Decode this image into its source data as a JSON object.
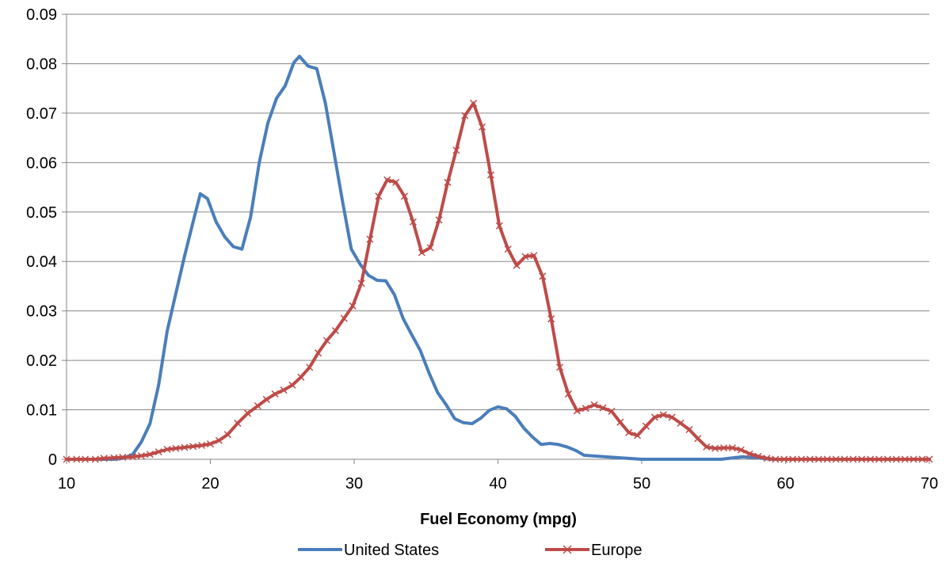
{
  "chart_data": {
    "type": "line",
    "title": "",
    "xlabel": "Fuel Economy (mpg)",
    "ylabel": "",
    "xlim": [
      10,
      70
    ],
    "ylim": [
      0,
      0.09
    ],
    "x_ticks": [
      10,
      20,
      30,
      40,
      50,
      60,
      70
    ],
    "y_ticks": [
      0,
      0.01,
      0.02,
      0.03,
      0.04,
      0.05,
      0.06,
      0.07,
      0.08,
      0.09
    ],
    "x_tick_labels": [
      "10",
      "20",
      "30",
      "40",
      "50",
      "60",
      "70"
    ],
    "y_tick_labels": [
      "0",
      "0.01",
      "0.02",
      "0.03",
      "0.04",
      "0.05",
      "0.06",
      "0.07",
      "0.08",
      "0.09"
    ],
    "grid": "horizontal",
    "legend_position": "bottom",
    "series": [
      {
        "name": "United States",
        "color": "#4a7ebb",
        "marker": "none",
        "x": [
          10,
          10.7,
          11.3,
          12,
          12.6,
          13.3,
          13.9,
          14.6,
          15.2,
          15.8,
          16.4,
          17,
          17.6,
          18.2,
          18.8,
          19.3,
          19.8,
          20.4,
          21,
          21.6,
          22.2,
          22.8,
          23.4,
          24,
          24.6,
          25.2,
          25.8,
          26.2,
          26.8,
          27.4,
          28,
          28.6,
          29.2,
          29.8,
          30.4,
          31,
          31.6,
          32.2,
          32.8,
          33.4,
          34,
          34.6,
          35.2,
          35.8,
          36.4,
          37,
          37.6,
          38.2,
          38.8,
          39.4,
          40,
          40.6,
          41.2,
          41.8,
          42.4,
          43,
          43.6,
          44.2,
          44.8,
          45.4,
          46,
          50,
          55.5,
          57,
          58,
          59,
          70
        ],
        "y": [
          0,
          0,
          0,
          0,
          0,
          0,
          0.0002,
          0.001,
          0.0035,
          0.0072,
          0.015,
          0.026,
          0.0335,
          0.041,
          0.048,
          0.0537,
          0.0527,
          0.048,
          0.045,
          0.043,
          0.0425,
          0.049,
          0.06,
          0.068,
          0.073,
          0.0755,
          0.0802,
          0.0815,
          0.0795,
          0.079,
          0.072,
          0.062,
          0.052,
          0.0425,
          0.0395,
          0.0372,
          0.0362,
          0.0361,
          0.0333,
          0.0285,
          0.0252,
          0.022,
          0.0175,
          0.0135,
          0.011,
          0.0082,
          0.0074,
          0.0072,
          0.0083,
          0.0099,
          0.0106,
          0.0102,
          0.0087,
          0.0063,
          0.0045,
          0.003,
          0.0032,
          0.003,
          0.0025,
          0.0018,
          0.0008,
          0,
          0,
          0.0005,
          0.0003,
          0,
          0
        ]
      },
      {
        "name": "Europe",
        "color": "#be4b48",
        "marker": "x",
        "x": [
          10,
          10.7,
          11.3,
          12,
          12.6,
          13.3,
          13.9,
          14.6,
          15.2,
          15.8,
          16.4,
          17,
          17.6,
          18.2,
          18.8,
          19.4,
          20,
          20.6,
          21.2,
          21.9,
          22.6,
          23.3,
          23.9,
          24.5,
          25.1,
          25.7,
          26.3,
          26.9,
          27.5,
          28.1,
          28.7,
          29.3,
          29.9,
          30.5,
          31.1,
          31.7,
          32.3,
          32.9,
          33.5,
          34.1,
          34.7,
          35.3,
          35.9,
          36.5,
          37.1,
          37.7,
          38.3,
          38.9,
          39.5,
          40.1,
          40.7,
          41.3,
          41.9,
          42.5,
          43.1,
          43.7,
          44.3,
          44.9,
          45.5,
          46.1,
          46.7,
          47.3,
          47.9,
          48.5,
          49.1,
          49.7,
          50.3,
          50.9,
          51.5,
          52.1,
          52.7,
          53.3,
          53.9,
          54.5,
          55.1,
          55.7,
          56.3,
          56.9,
          57.5,
          58.1,
          58.7,
          59.3,
          59.9,
          60.5,
          61.1,
          61.7,
          62.3,
          62.9,
          63.5,
          64.1,
          64.7,
          65.3,
          65.9,
          66.5,
          67.1,
          67.7,
          68.3,
          68.9,
          69.5,
          70
        ],
        "y": [
          0,
          0,
          0,
          0,
          0.0002,
          0.0003,
          0.0004,
          0.0005,
          0.0007,
          0.001,
          0.0015,
          0.002,
          0.0022,
          0.0024,
          0.0026,
          0.0028,
          0.0031,
          0.0038,
          0.005,
          0.0073,
          0.0093,
          0.0108,
          0.0121,
          0.0132,
          0.014,
          0.015,
          0.0166,
          0.0186,
          0.0215,
          0.024,
          0.026,
          0.0285,
          0.031,
          0.0356,
          0.0445,
          0.0532,
          0.0565,
          0.056,
          0.0532,
          0.048,
          0.0418,
          0.0428,
          0.0484,
          0.056,
          0.0625,
          0.0695,
          0.072,
          0.0672,
          0.0575,
          0.0472,
          0.0425,
          0.0392,
          0.041,
          0.0412,
          0.037,
          0.0284,
          0.0186,
          0.0132,
          0.0098,
          0.0103,
          0.011,
          0.0104,
          0.0097,
          0.0075,
          0.0054,
          0.0048,
          0.0067,
          0.0085,
          0.009,
          0.0085,
          0.0073,
          0.006,
          0.0042,
          0.0025,
          0.0022,
          0.0023,
          0.0023,
          0.0019,
          0.0011,
          0.0006,
          0.0002,
          0,
          0,
          0,
          0,
          0,
          0,
          0,
          0,
          0,
          0,
          0,
          0,
          0,
          0,
          0,
          0,
          0,
          0,
          0
        ]
      }
    ]
  }
}
